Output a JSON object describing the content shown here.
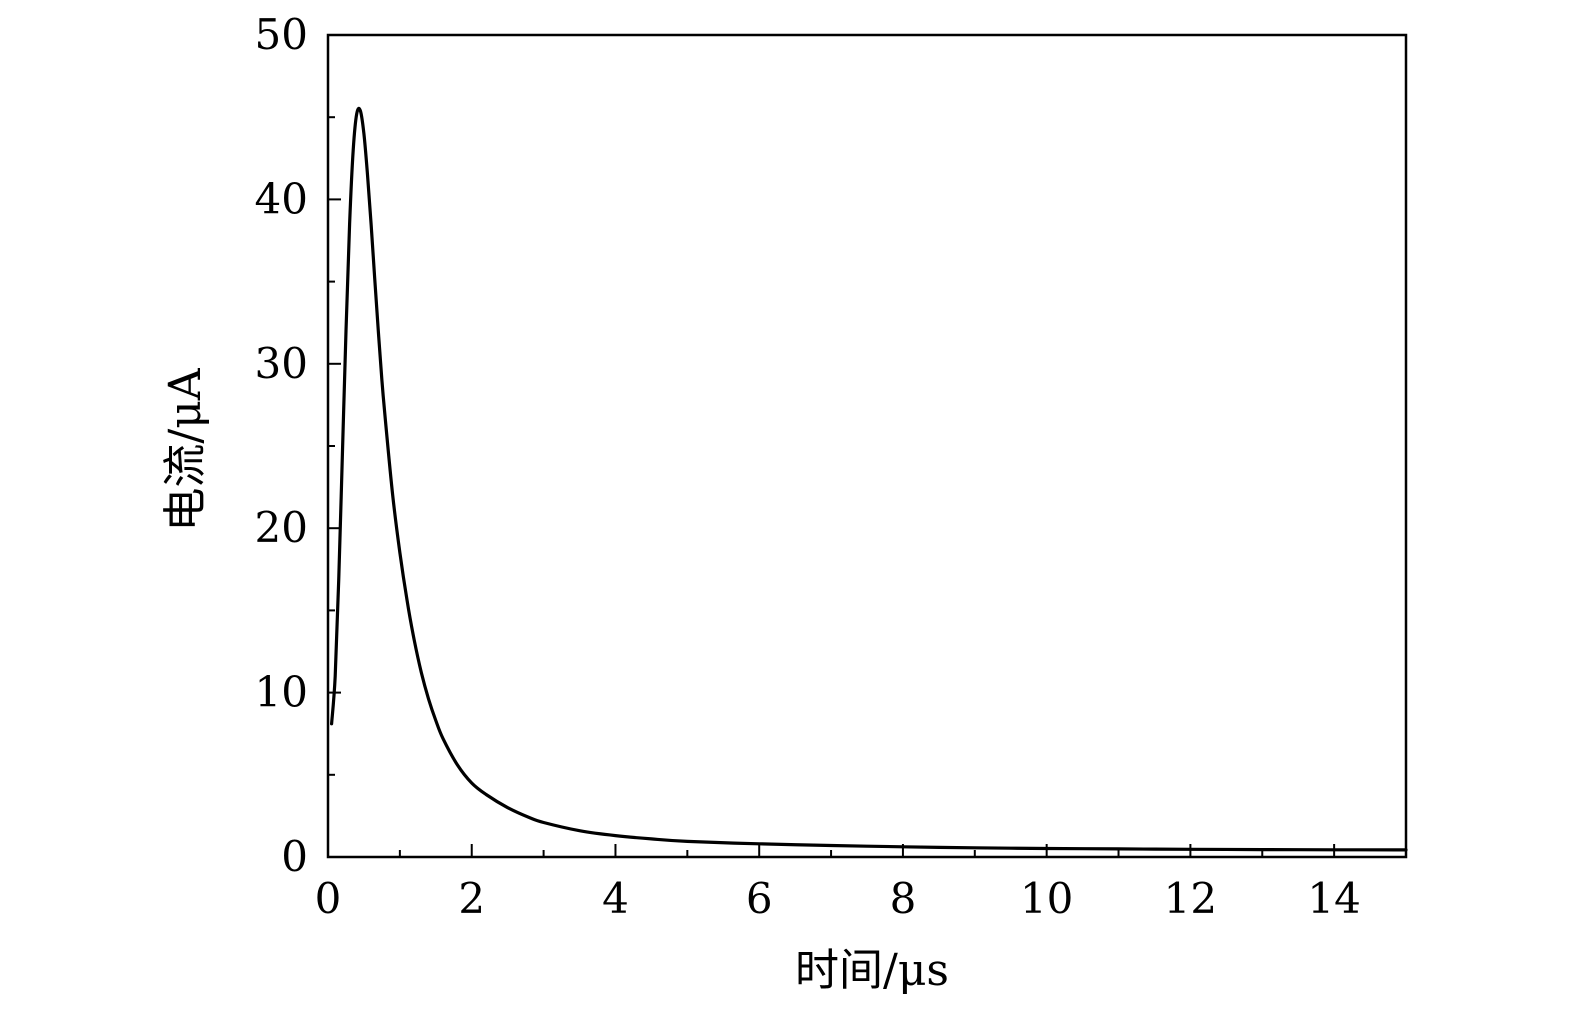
{
  "chart_data": {
    "type": "line",
    "title": "",
    "xlabel": "时间/μs",
    "ylabel": "电流/μA",
    "xlim": [
      0,
      15
    ],
    "ylim": [
      0,
      50
    ],
    "grid": false,
    "x_ticks": [
      0,
      2,
      4,
      6,
      8,
      10,
      12,
      14
    ],
    "y_ticks": [
      0,
      10,
      20,
      30,
      40,
      50
    ],
    "x_tick_labels": [
      "0",
      "2",
      "4",
      "6",
      "8",
      "10",
      "12",
      "14"
    ],
    "y_tick_labels": [
      "0",
      "10",
      "20",
      "30",
      "40",
      "50"
    ],
    "line_color": "#000000",
    "series": [
      {
        "x": [
          0.05,
          0.1,
          0.15,
          0.2,
          0.25,
          0.3,
          0.35,
          0.4,
          0.45,
          0.5,
          0.55,
          0.6,
          0.65,
          0.7,
          0.75,
          0.8,
          0.9,
          1.0,
          1.1,
          1.2,
          1.3,
          1.4,
          1.5,
          1.6,
          1.8,
          2.0,
          2.2,
          2.5,
          2.8,
          3.0,
          3.5,
          4.0,
          4.5,
          5.0,
          6.0,
          7.0,
          8.0,
          9.0,
          10.0,
          11.0,
          12.0,
          13.0,
          14.0,
          15.0
        ],
        "y": [
          8.1,
          11.0,
          17.0,
          24.5,
          32.0,
          38.5,
          43.0,
          45.2,
          45.4,
          44.0,
          41.5,
          38.5,
          35.2,
          32.0,
          29.0,
          26.5,
          22.0,
          18.5,
          15.6,
          13.2,
          11.2,
          9.6,
          8.3,
          7.2,
          5.6,
          4.5,
          3.8,
          3.0,
          2.4,
          2.1,
          1.6,
          1.3,
          1.1,
          0.95,
          0.8,
          0.7,
          0.62,
          0.56,
          0.52,
          0.49,
          0.47,
          0.45,
          0.44,
          0.43
        ]
      }
    ]
  }
}
